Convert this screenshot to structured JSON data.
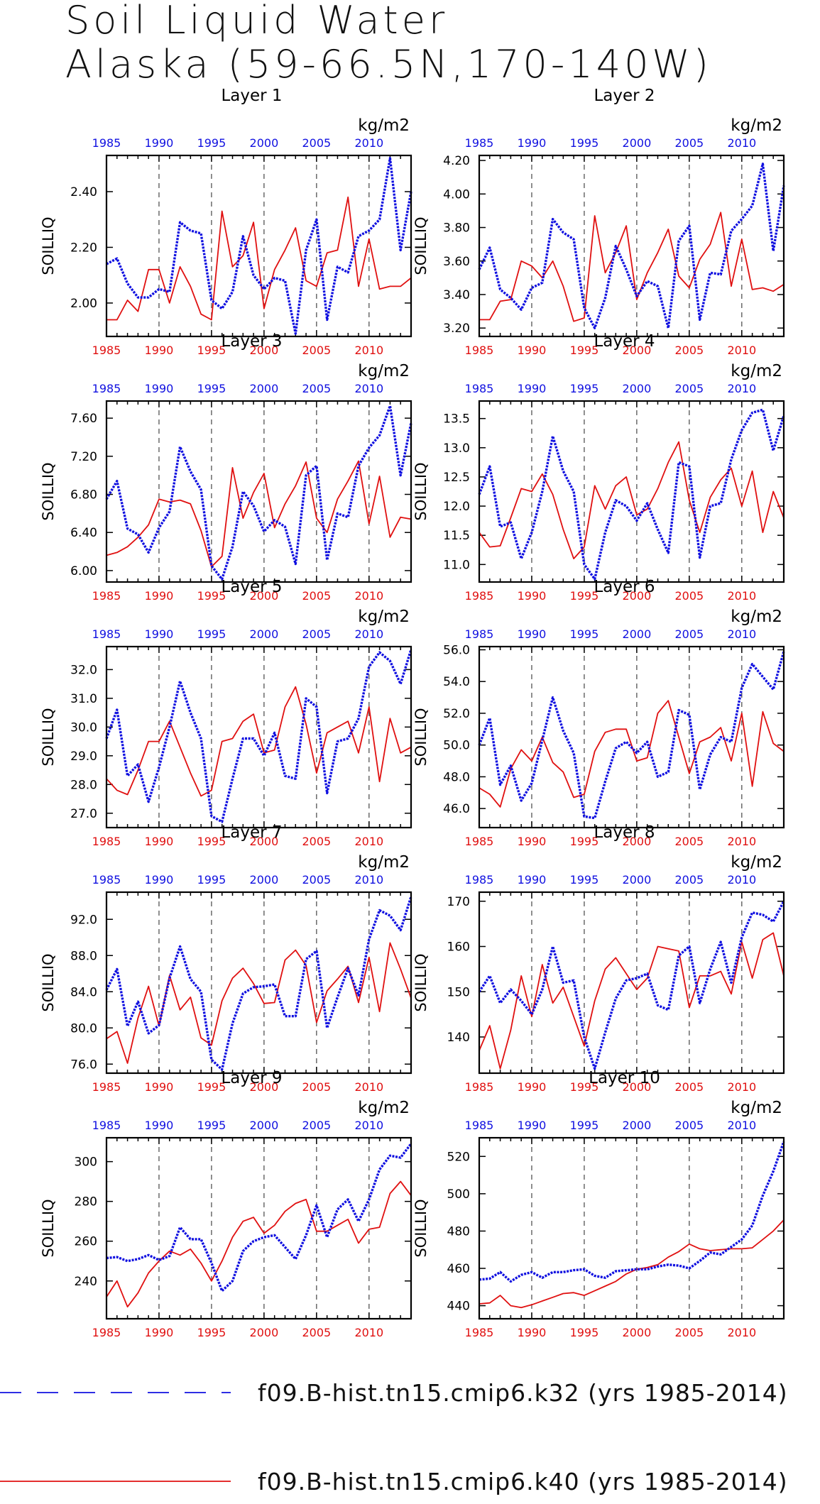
{
  "title": [
    "Soil Liquid Water",
    "Alaska (59-66.5N,170-140W)"
  ],
  "ylabel": "SOILLIQ",
  "units": "kg/m2",
  "colors": {
    "k32": "#1010e0",
    "k40": "#e01010",
    "axis": "#000000"
  },
  "legend": [
    {
      "label": "f09.B-hist.tn15.cmip6.k32 (yrs 1985-2014)",
      "style": "dashed",
      "color": "#1010e0"
    },
    {
      "label": "f09.B-hist.tn15.cmip6.k40 (yrs 1985-2014)",
      "style": "solid",
      "color": "#e01010"
    }
  ],
  "chart_data": [
    {
      "type": "line",
      "title": "Layer 1",
      "ylabel": "SOILLIQ",
      "xlim": [
        1985,
        2014
      ],
      "ylim": [
        1.88,
        2.53
      ],
      "xticks": [
        1985,
        1990,
        1995,
        2000,
        2005,
        2010
      ],
      "yticks": [
        2.0,
        2.2,
        2.4
      ],
      "ytick_labels": [
        "2.00",
        "2.20",
        "2.40"
      ],
      "x_start": 1985,
      "series": [
        {
          "name": "f09.B-hist.tn15.cmip6.k32",
          "values": [
            2.14,
            2.16,
            2.07,
            2.02,
            2.02,
            2.05,
            2.04,
            2.29,
            2.26,
            2.25,
            2.01,
            1.98,
            2.04,
            2.24,
            2.1,
            2.05,
            2.09,
            2.08,
            1.89,
            2.19,
            2.3,
            1.94,
            2.13,
            2.11,
            2.24,
            2.26,
            2.3,
            2.52,
            2.19,
            2.4
          ]
        },
        {
          "name": "f09.B-hist.tn15.cmip6.k40",
          "values": [
            1.94,
            1.94,
            2.01,
            1.97,
            2.12,
            2.12,
            2.0,
            2.13,
            2.06,
            1.96,
            1.94,
            2.33,
            2.13,
            2.17,
            2.29,
            1.98,
            2.12,
            2.19,
            2.27,
            2.08,
            2.06,
            2.18,
            2.19,
            2.38,
            2.06,
            2.23,
            2.05,
            2.06,
            2.06,
            2.09
          ]
        }
      ]
    },
    {
      "type": "line",
      "title": "Layer 2",
      "ylabel": "SOILLIQ",
      "xlim": [
        1985,
        2014
      ],
      "ylim": [
        3.15,
        4.23
      ],
      "xticks": [
        1985,
        1990,
        1995,
        2000,
        2005,
        2010
      ],
      "yticks": [
        3.2,
        3.4,
        3.6,
        3.8,
        4.0,
        4.2
      ],
      "ytick_labels": [
        "3.20",
        "3.40",
        "3.60",
        "3.80",
        "4.00",
        "4.20"
      ],
      "x_start": 1985,
      "series": [
        {
          "name": "f09.B-hist.tn15.cmip6.k32",
          "values": [
            3.55,
            3.68,
            3.43,
            3.38,
            3.31,
            3.44,
            3.47,
            3.85,
            3.77,
            3.73,
            3.32,
            3.2,
            3.38,
            3.69,
            3.55,
            3.39,
            3.48,
            3.45,
            3.2,
            3.72,
            3.81,
            3.25,
            3.53,
            3.52,
            3.78,
            3.85,
            3.93,
            4.18,
            3.66,
            4.05
          ]
        },
        {
          "name": "f09.B-hist.tn15.cmip6.k40",
          "values": [
            3.25,
            3.25,
            3.36,
            3.37,
            3.6,
            3.57,
            3.5,
            3.6,
            3.45,
            3.24,
            3.26,
            3.87,
            3.53,
            3.65,
            3.81,
            3.37,
            3.53,
            3.65,
            3.79,
            3.51,
            3.44,
            3.61,
            3.7,
            3.89,
            3.45,
            3.73,
            3.43,
            3.44,
            3.42,
            3.46
          ]
        }
      ]
    },
    {
      "type": "line",
      "title": "Layer 3",
      "ylabel": "SOILLIQ",
      "xlim": [
        1985,
        2014
      ],
      "ylim": [
        5.88,
        7.78
      ],
      "xticks": [
        1985,
        1990,
        1995,
        2000,
        2005,
        2010
      ],
      "yticks": [
        6.0,
        6.4,
        6.8,
        7.2,
        7.6
      ],
      "ytick_labels": [
        "6.00",
        "6.40",
        "6.80",
        "7.20",
        "7.60"
      ],
      "x_start": 1985,
      "series": [
        {
          "name": "f09.B-hist.tn15.cmip6.k32",
          "values": [
            6.75,
            6.94,
            6.44,
            6.38,
            6.19,
            6.45,
            6.62,
            7.3,
            7.04,
            6.85,
            6.05,
            5.91,
            6.25,
            6.83,
            6.68,
            6.41,
            6.53,
            6.46,
            6.07,
            7.0,
            7.1,
            6.11,
            6.6,
            6.56,
            7.1,
            7.29,
            7.42,
            7.73,
            7.0,
            7.55
          ]
        },
        {
          "name": "f09.B-hist.tn15.cmip6.k40",
          "values": [
            6.16,
            6.19,
            6.25,
            6.35,
            6.48,
            6.75,
            6.72,
            6.74,
            6.7,
            6.42,
            6.04,
            6.15,
            7.08,
            6.55,
            6.82,
            7.02,
            6.45,
            6.7,
            6.89,
            7.14,
            6.55,
            6.4,
            6.75,
            6.94,
            7.15,
            6.49,
            6.99,
            6.35,
            6.56,
            6.54
          ]
        }
      ]
    },
    {
      "type": "line",
      "title": "Layer 4",
      "ylabel": "SOILLIQ",
      "xlim": [
        1985,
        2014
      ],
      "ylim": [
        10.7,
        13.8
      ],
      "xticks": [
        1985,
        1990,
        1995,
        2000,
        2005,
        2010
      ],
      "yticks": [
        11.0,
        11.5,
        12.0,
        12.5,
        13.0,
        13.5
      ],
      "ytick_labels": [
        "11.0",
        "11.5",
        "12.0",
        "12.5",
        "13.0",
        "13.5"
      ],
      "x_start": 1985,
      "series": [
        {
          "name": "f09.B-hist.tn15.cmip6.k32",
          "values": [
            12.2,
            12.68,
            11.65,
            11.72,
            11.1,
            11.55,
            12.25,
            13.2,
            12.6,
            12.25,
            11.0,
            10.75,
            11.55,
            12.1,
            12.0,
            11.75,
            12.05,
            11.6,
            11.2,
            12.75,
            12.68,
            11.12,
            12.0,
            12.05,
            12.8,
            13.3,
            13.6,
            13.65,
            12.95,
            13.55
          ]
        },
        {
          "name": "f09.B-hist.tn15.cmip6.k40",
          "values": [
            11.55,
            11.3,
            11.32,
            11.8,
            12.3,
            12.25,
            12.55,
            12.2,
            11.6,
            11.1,
            11.3,
            12.35,
            11.95,
            12.35,
            12.5,
            11.85,
            11.95,
            12.3,
            12.75,
            13.1,
            12.1,
            11.55,
            12.15,
            12.45,
            12.65,
            12.0,
            12.6,
            11.55,
            12.25,
            11.8
          ]
        }
      ]
    },
    {
      "type": "line",
      "title": "Layer 5",
      "ylabel": "SOILLIQ",
      "xlim": [
        1985,
        2014
      ],
      "ylim": [
        26.5,
        32.8
      ],
      "xticks": [
        1985,
        1990,
        1995,
        2000,
        2005,
        2010
      ],
      "yticks": [
        27.0,
        28.0,
        29.0,
        30.0,
        31.0,
        32.0
      ],
      "ytick_labels": [
        "27.0",
        "28.0",
        "29.0",
        "30.0",
        "31.0",
        "32.0"
      ],
      "x_start": 1985,
      "series": [
        {
          "name": "f09.B-hist.tn15.cmip6.k32",
          "values": [
            29.6,
            30.6,
            28.3,
            28.7,
            27.4,
            28.6,
            30.0,
            31.6,
            30.5,
            29.6,
            26.9,
            26.7,
            28.2,
            29.6,
            29.6,
            29.0,
            29.8,
            28.3,
            28.2,
            31.0,
            30.7,
            27.7,
            29.5,
            29.6,
            30.3,
            32.1,
            32.6,
            32.3,
            31.5,
            32.7
          ]
        },
        {
          "name": "f09.B-hist.tn15.cmip6.k40",
          "values": [
            28.2,
            27.8,
            27.65,
            28.5,
            29.5,
            29.5,
            30.2,
            29.3,
            28.4,
            27.6,
            27.8,
            29.5,
            29.6,
            30.2,
            30.45,
            29.1,
            29.2,
            30.7,
            31.4,
            30.1,
            28.4,
            29.8,
            30.0,
            30.2,
            29.1,
            30.7,
            28.1,
            30.3,
            29.1,
            29.3
          ]
        }
      ]
    },
    {
      "type": "line",
      "title": "Layer 6",
      "ylabel": "SOILLIQ",
      "xlim": [
        1985,
        2014
      ],
      "ylim": [
        44.8,
        56.2
      ],
      "xticks": [
        1985,
        1990,
        1995,
        2000,
        2005,
        2010
      ],
      "yticks": [
        46.0,
        48.0,
        50.0,
        52.0,
        54.0,
        56.0
      ],
      "ytick_labels": [
        "46.0",
        "48.0",
        "50.0",
        "52.0",
        "54.0",
        "56.0"
      ],
      "x_start": 1985,
      "series": [
        {
          "name": "f09.B-hist.tn15.cmip6.k32",
          "values": [
            50.0,
            51.7,
            47.5,
            48.7,
            46.5,
            47.6,
            50.3,
            53.0,
            50.9,
            49.5,
            45.5,
            45.4,
            47.7,
            49.8,
            50.2,
            49.5,
            50.2,
            48.0,
            48.3,
            52.2,
            51.9,
            47.2,
            49.4,
            50.5,
            50.2,
            53.6,
            55.1,
            54.3,
            53.5,
            55.9
          ]
        },
        {
          "name": "f09.B-hist.tn15.cmip6.k40",
          "values": [
            47.3,
            46.9,
            46.1,
            48.5,
            49.7,
            49.0,
            50.5,
            48.9,
            48.3,
            46.7,
            46.9,
            49.6,
            50.8,
            51.0,
            51.0,
            49.0,
            49.2,
            52.0,
            52.8,
            50.5,
            48.2,
            50.2,
            50.5,
            51.1,
            49.0,
            52.0,
            47.4,
            52.1,
            50.1,
            49.6
          ]
        }
      ]
    },
    {
      "type": "line",
      "title": "Layer 7",
      "ylabel": "SOILLIQ",
      "xlim": [
        1985,
        2014
      ],
      "ylim": [
        75.0,
        95.0
      ],
      "xticks": [
        1985,
        1990,
        1995,
        2000,
        2005,
        2010
      ],
      "yticks": [
        76.0,
        80.0,
        84.0,
        88.0,
        92.0
      ],
      "ytick_labels": [
        "76.0",
        "80.0",
        "84.0",
        "88.0",
        "92.0"
      ],
      "x_start": 1985,
      "series": [
        {
          "name": "f09.B-hist.tn15.cmip6.k32",
          "values": [
            84.2,
            86.5,
            80.2,
            82.9,
            79.4,
            80.3,
            85.5,
            89.0,
            85.4,
            84.0,
            76.5,
            75.4,
            80.5,
            83.8,
            84.5,
            84.6,
            84.8,
            81.3,
            81.3,
            87.6,
            88.5,
            80.0,
            83.4,
            86.6,
            83.6,
            89.8,
            93.0,
            92.4,
            90.8,
            94.5
          ]
        },
        {
          "name": "f09.B-hist.tn15.cmip6.k40",
          "values": [
            78.8,
            79.6,
            76.1,
            81.1,
            84.6,
            80.2,
            85.8,
            82.0,
            83.4,
            78.9,
            78.1,
            83.0,
            85.5,
            86.6,
            84.9,
            82.7,
            82.8,
            87.5,
            88.6,
            86.9,
            80.6,
            84.1,
            85.4,
            86.8,
            82.8,
            87.8,
            81.8,
            89.4,
            86.5,
            83.3
          ]
        }
      ]
    },
    {
      "type": "line",
      "title": "Layer 8",
      "ylabel": "SOILLIQ",
      "xlim": [
        1985,
        2014
      ],
      "ylim": [
        132.0,
        172.0
      ],
      "xticks": [
        1985,
        1990,
        1995,
        2000,
        2005,
        2010
      ],
      "yticks": [
        140,
        150,
        160,
        170
      ],
      "ytick_labels": [
        "140",
        "150",
        "160",
        "170"
      ],
      "x_start": 1985,
      "series": [
        {
          "name": "f09.B-hist.tn15.cmip6.k32",
          "values": [
            150.0,
            153.5,
            147.5,
            150.5,
            148.0,
            145.0,
            150.5,
            160.0,
            152.0,
            152.5,
            140.0,
            133.0,
            141.0,
            148.5,
            152.5,
            153.0,
            154.0,
            147.0,
            146.0,
            158.0,
            160.0,
            147.5,
            155.0,
            161.0,
            152.0,
            162.0,
            167.5,
            167.0,
            165.5,
            170.0
          ]
        },
        {
          "name": "f09.B-hist.tn15.cmip6.k40",
          "values": [
            137.0,
            142.5,
            133.0,
            141.5,
            153.5,
            144.5,
            156.0,
            147.5,
            151.0,
            144.5,
            138.0,
            148.0,
            155.0,
            157.5,
            154.0,
            150.5,
            153.0,
            160.0,
            159.5,
            159.0,
            146.5,
            153.5,
            153.5,
            154.5,
            149.5,
            161.0,
            153.0,
            161.5,
            163.0,
            153.5
          ]
        }
      ]
    },
    {
      "type": "line",
      "title": "Layer 9",
      "ylabel": "SOILLIQ",
      "xlim": [
        1985,
        2014
      ],
      "ylim": [
        221.0,
        312.0
      ],
      "xticks": [
        1985,
        1990,
        1995,
        2000,
        2005,
        2010
      ],
      "yticks": [
        240,
        260,
        280,
        300
      ],
      "ytick_labels": [
        "240",
        "260",
        "280",
        "300"
      ],
      "x_start": 1985,
      "series": [
        {
          "name": "f09.B-hist.tn15.cmip6.k32",
          "values": [
            251.5,
            252.0,
            250.0,
            251.0,
            253.0,
            250.5,
            252.5,
            267.0,
            261.0,
            261.0,
            249.0,
            235.0,
            240.0,
            255.0,
            260.0,
            262.0,
            263.0,
            257.0,
            251.0,
            263.0,
            278.0,
            262.0,
            276.0,
            281.0,
            270.0,
            281.0,
            296.0,
            303.0,
            302.0,
            309.0
          ]
        },
        {
          "name": "f09.B-hist.tn15.cmip6.k40",
          "values": [
            232.0,
            240.0,
            227.0,
            234.0,
            244.0,
            250.0,
            255.0,
            253.0,
            256.0,
            249.0,
            240.0,
            250.0,
            262.0,
            270.0,
            272.0,
            264.0,
            268.0,
            275.0,
            279.0,
            281.0,
            265.0,
            265.0,
            268.0,
            271.0,
            259.0,
            266.0,
            267.0,
            284.0,
            290.0,
            283.0
          ]
        }
      ]
    },
    {
      "type": "line",
      "title": "Layer 10",
      "ylabel": "SOILLIQ",
      "xlim": [
        1985,
        2014
      ],
      "ylim": [
        433.0,
        530.0
      ],
      "xticks": [
        1985,
        1990,
        1995,
        2000,
        2005,
        2010
      ],
      "yticks": [
        440,
        460,
        480,
        500,
        520
      ],
      "ytick_labels": [
        "440",
        "460",
        "480",
        "500",
        "520"
      ],
      "x_start": 1985,
      "series": [
        {
          "name": "f09.B-hist.tn15.cmip6.k32",
          "values": [
            454.0,
            454.5,
            458.0,
            453.0,
            456.5,
            458.0,
            455.0,
            458.0,
            458.0,
            459.0,
            459.5,
            456.0,
            455.0,
            458.5,
            459.0,
            459.5,
            459.5,
            461.0,
            462.0,
            461.5,
            460.0,
            464.0,
            468.5,
            467.5,
            471.5,
            475.5,
            483.0,
            499.0,
            512.0,
            528.0
          ]
        },
        {
          "name": "f09.B-hist.tn15.cmip6.k40",
          "values": [
            441.0,
            441.5,
            445.5,
            440.0,
            439.0,
            440.5,
            442.5,
            444.5,
            446.5,
            447.0,
            445.5,
            448.0,
            450.5,
            453.0,
            457.0,
            459.5,
            460.5,
            462.0,
            466.0,
            469.0,
            473.0,
            470.5,
            469.5,
            470.0,
            470.5,
            470.5,
            471.0,
            475.5,
            480.0,
            486.0
          ]
        }
      ]
    }
  ]
}
